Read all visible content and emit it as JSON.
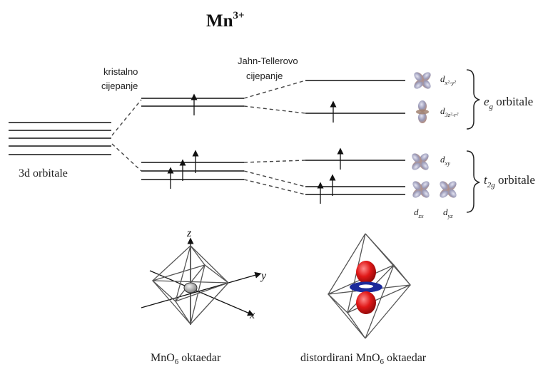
{
  "title": {
    "base": "Mn",
    "sup": "3+"
  },
  "labels": {
    "d_orbitals": "3d orbitale",
    "crystal_splitting_line1": "kristalno",
    "crystal_splitting_line2": "cijepanje",
    "jahn_teller_line1": "Jahn-Tellerovo",
    "jahn_teller_line2": "cijepanje",
    "eg_orbitals": {
      "symbol": "e",
      "sub": "g",
      "word": "orbitale"
    },
    "t2g_orbitals": {
      "symbol": "t",
      "sub": "2g",
      "word": "orbitale"
    }
  },
  "orbitals": {
    "dx2y2": {
      "main": "d",
      "sub": "x²-y²"
    },
    "dz2": {
      "main": "d",
      "sub": "3z²-r²"
    },
    "dxy": {
      "main": "d",
      "sub": "xy"
    },
    "dzx": {
      "main": "d",
      "sub": "zx"
    },
    "dyz": {
      "main": "d",
      "sub": "yz"
    }
  },
  "axes": {
    "z": "z",
    "y": "y",
    "x": "x"
  },
  "captions": {
    "regular": {
      "pre": "MnO",
      "sub": "6",
      "post": " oktaedar"
    },
    "distorted": {
      "pre": "distordirani MnO",
      "sub": "6",
      "post": " oktaedar"
    }
  },
  "electrons": {
    "total": 4,
    "spin": "up"
  },
  "colors": {
    "lobe": "#9a9ab8",
    "lobe_edge": "#c09a84",
    "red_lobe": "#e01818",
    "torus": "#1c2a9a",
    "center_sphere": "#a8a8a8"
  }
}
